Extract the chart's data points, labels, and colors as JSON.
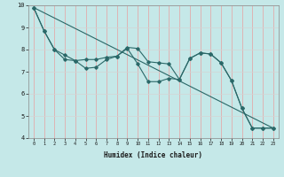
{
  "xlabel": "Humidex (Indice chaleur)",
  "background_color": "#c5e8e8",
  "grid_color_v": "#e8a0a0",
  "grid_color_h": "#d4d4d4",
  "line_color": "#2a6868",
  "xlim": [
    -0.5,
    23.5
  ],
  "ylim": [
    4,
    10
  ],
  "yticks": [
    4,
    5,
    6,
    7,
    8,
    9,
    10
  ],
  "xticks": [
    0,
    1,
    2,
    3,
    4,
    5,
    6,
    7,
    8,
    9,
    10,
    11,
    12,
    13,
    14,
    15,
    16,
    17,
    18,
    19,
    20,
    21,
    22,
    23
  ],
  "line1_x": [
    0,
    1,
    2,
    3,
    4,
    5,
    6,
    7,
    8,
    9,
    10,
    11,
    12,
    13,
    14,
    15,
    16,
    17,
    18,
    19,
    20,
    21,
    22,
    23
  ],
  "line1_y": [
    9.9,
    8.85,
    8.0,
    7.55,
    7.5,
    7.15,
    7.2,
    7.55,
    7.7,
    8.05,
    7.35,
    6.55,
    6.55,
    6.7,
    6.65,
    7.6,
    7.85,
    7.8,
    7.4,
    6.6,
    5.35,
    4.45,
    4.45,
    4.45
  ],
  "line2_x": [
    0,
    1,
    2,
    3,
    4,
    5,
    6,
    7,
    8,
    9,
    10,
    11,
    12,
    13,
    14,
    15,
    16,
    17,
    18,
    19,
    20,
    21,
    22,
    23
  ],
  "line2_y": [
    9.9,
    8.85,
    8.0,
    7.75,
    7.5,
    7.55,
    7.55,
    7.65,
    7.7,
    8.1,
    8.05,
    7.45,
    7.4,
    7.35,
    6.65,
    7.6,
    7.85,
    7.8,
    7.4,
    6.6,
    5.35,
    4.45,
    4.45,
    4.45
  ],
  "line3_x": [
    0,
    23
  ],
  "line3_y": [
    9.9,
    4.45
  ]
}
